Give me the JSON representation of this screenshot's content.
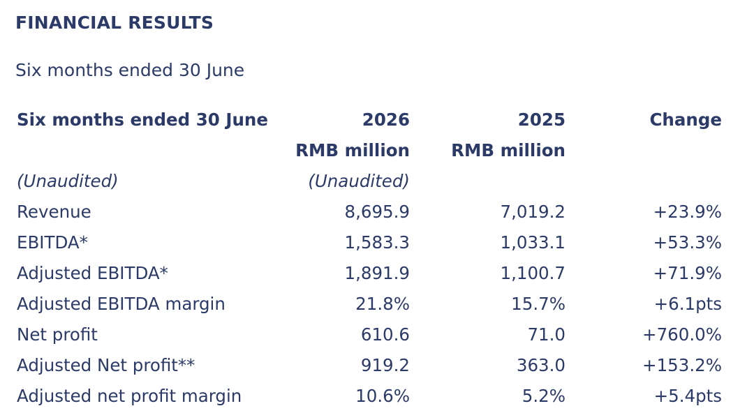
{
  "title": "FINANCIAL RESULTS",
  "subtitle": "Six months ended 30 June",
  "table": {
    "header": {
      "label": "Six months ended 30 June",
      "year_current": "2026",
      "year_prior": "2025",
      "change": "Change",
      "unit_current": "RMB million",
      "unit_prior": "RMB million",
      "audit_label": "(Unaudited)",
      "audit_current": "(Unaudited)"
    },
    "rows": [
      {
        "label": "Revenue",
        "current": "8,695.9",
        "prior": "7,019.2",
        "change": "+23.9%"
      },
      {
        "label": "EBITDA*",
        "current": "1,583.3",
        "prior": "1,033.1",
        "change": "+53.3%"
      },
      {
        "label": "Adjusted EBITDA*",
        "current": "1,891.9",
        "prior": "1,100.7",
        "change": "+71.9%"
      },
      {
        "label": "Adjusted EBITDA margin",
        "current": "21.8%",
        "prior": "15.7%",
        "change": "+6.1pts"
      },
      {
        "label": "Net profit",
        "current": "610.6",
        "prior": "71.0",
        "change": "+760.0%"
      },
      {
        "label": "Adjusted Net profit**",
        "current": "919.2",
        "prior": "363.0",
        "change": "+153.2%"
      },
      {
        "label": "Adjusted net profit margin",
        "current": "10.6%",
        "prior": "5.2%",
        "change": "+5.4pts"
      }
    ]
  }
}
